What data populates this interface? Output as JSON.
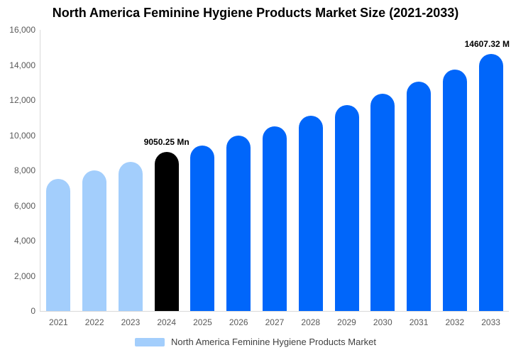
{
  "title": "North America Feminine Hygiene Products Market Size (2021-2033)",
  "chart_data": {
    "type": "bar",
    "title": "North America Feminine Hygiene Products Market Size (2021-2033)",
    "categories": [
      "2021",
      "2022",
      "2023",
      "2024",
      "2025",
      "2026",
      "2027",
      "2028",
      "2029",
      "2030",
      "2031",
      "2032",
      "2033"
    ],
    "values": [
      7510,
      7990,
      8470,
      9050.25,
      9420,
      9980,
      10490,
      11100,
      11700,
      12360,
      13040,
      13750,
      14607.32
    ],
    "point_colors": [
      "#A3CEFC",
      "#A3CEFC",
      "#A3CEFC",
      "#000000",
      "#0066FA",
      "#0066FA",
      "#0066FA",
      "#0066FA",
      "#0066FA",
      "#0066FA",
      "#0066FA",
      "#0066FA",
      "#0066FA"
    ],
    "xlabel": "",
    "ylabel": "",
    "ylim": [
      0,
      16000
    ],
    "grid": "off",
    "y_ticks": [
      {
        "value": 0,
        "label": "0"
      },
      {
        "value": 2000,
        "label": "2,000"
      },
      {
        "value": 4000,
        "label": "4,000"
      },
      {
        "value": 6000,
        "label": "6,000"
      },
      {
        "value": 8000,
        "label": "8,000"
      },
      {
        "value": 10000,
        "label": "10,000"
      },
      {
        "value": 12000,
        "label": "12,000"
      },
      {
        "value": 14000,
        "label": "14,000"
      },
      {
        "value": 16000,
        "label": "16,000"
      }
    ],
    "annotations": [
      {
        "index": 3,
        "label": "9050.25 Mn"
      },
      {
        "index": 12,
        "label": "14607.32 M"
      }
    ],
    "legend": {
      "position": "bottom",
      "label": "North America Feminine Hygiene Products Market",
      "swatch_color": "#A3CEFC"
    }
  },
  "colors": {
    "historical_bar": "#A3CEFC",
    "highlight_bar": "#000000",
    "forecast_bar": "#0066FA",
    "axis_line": "#d9d9d9",
    "axis_text": "#595959",
    "legend_text": "#404040",
    "annotation_text": "#000000",
    "background": "#ffffff"
  }
}
